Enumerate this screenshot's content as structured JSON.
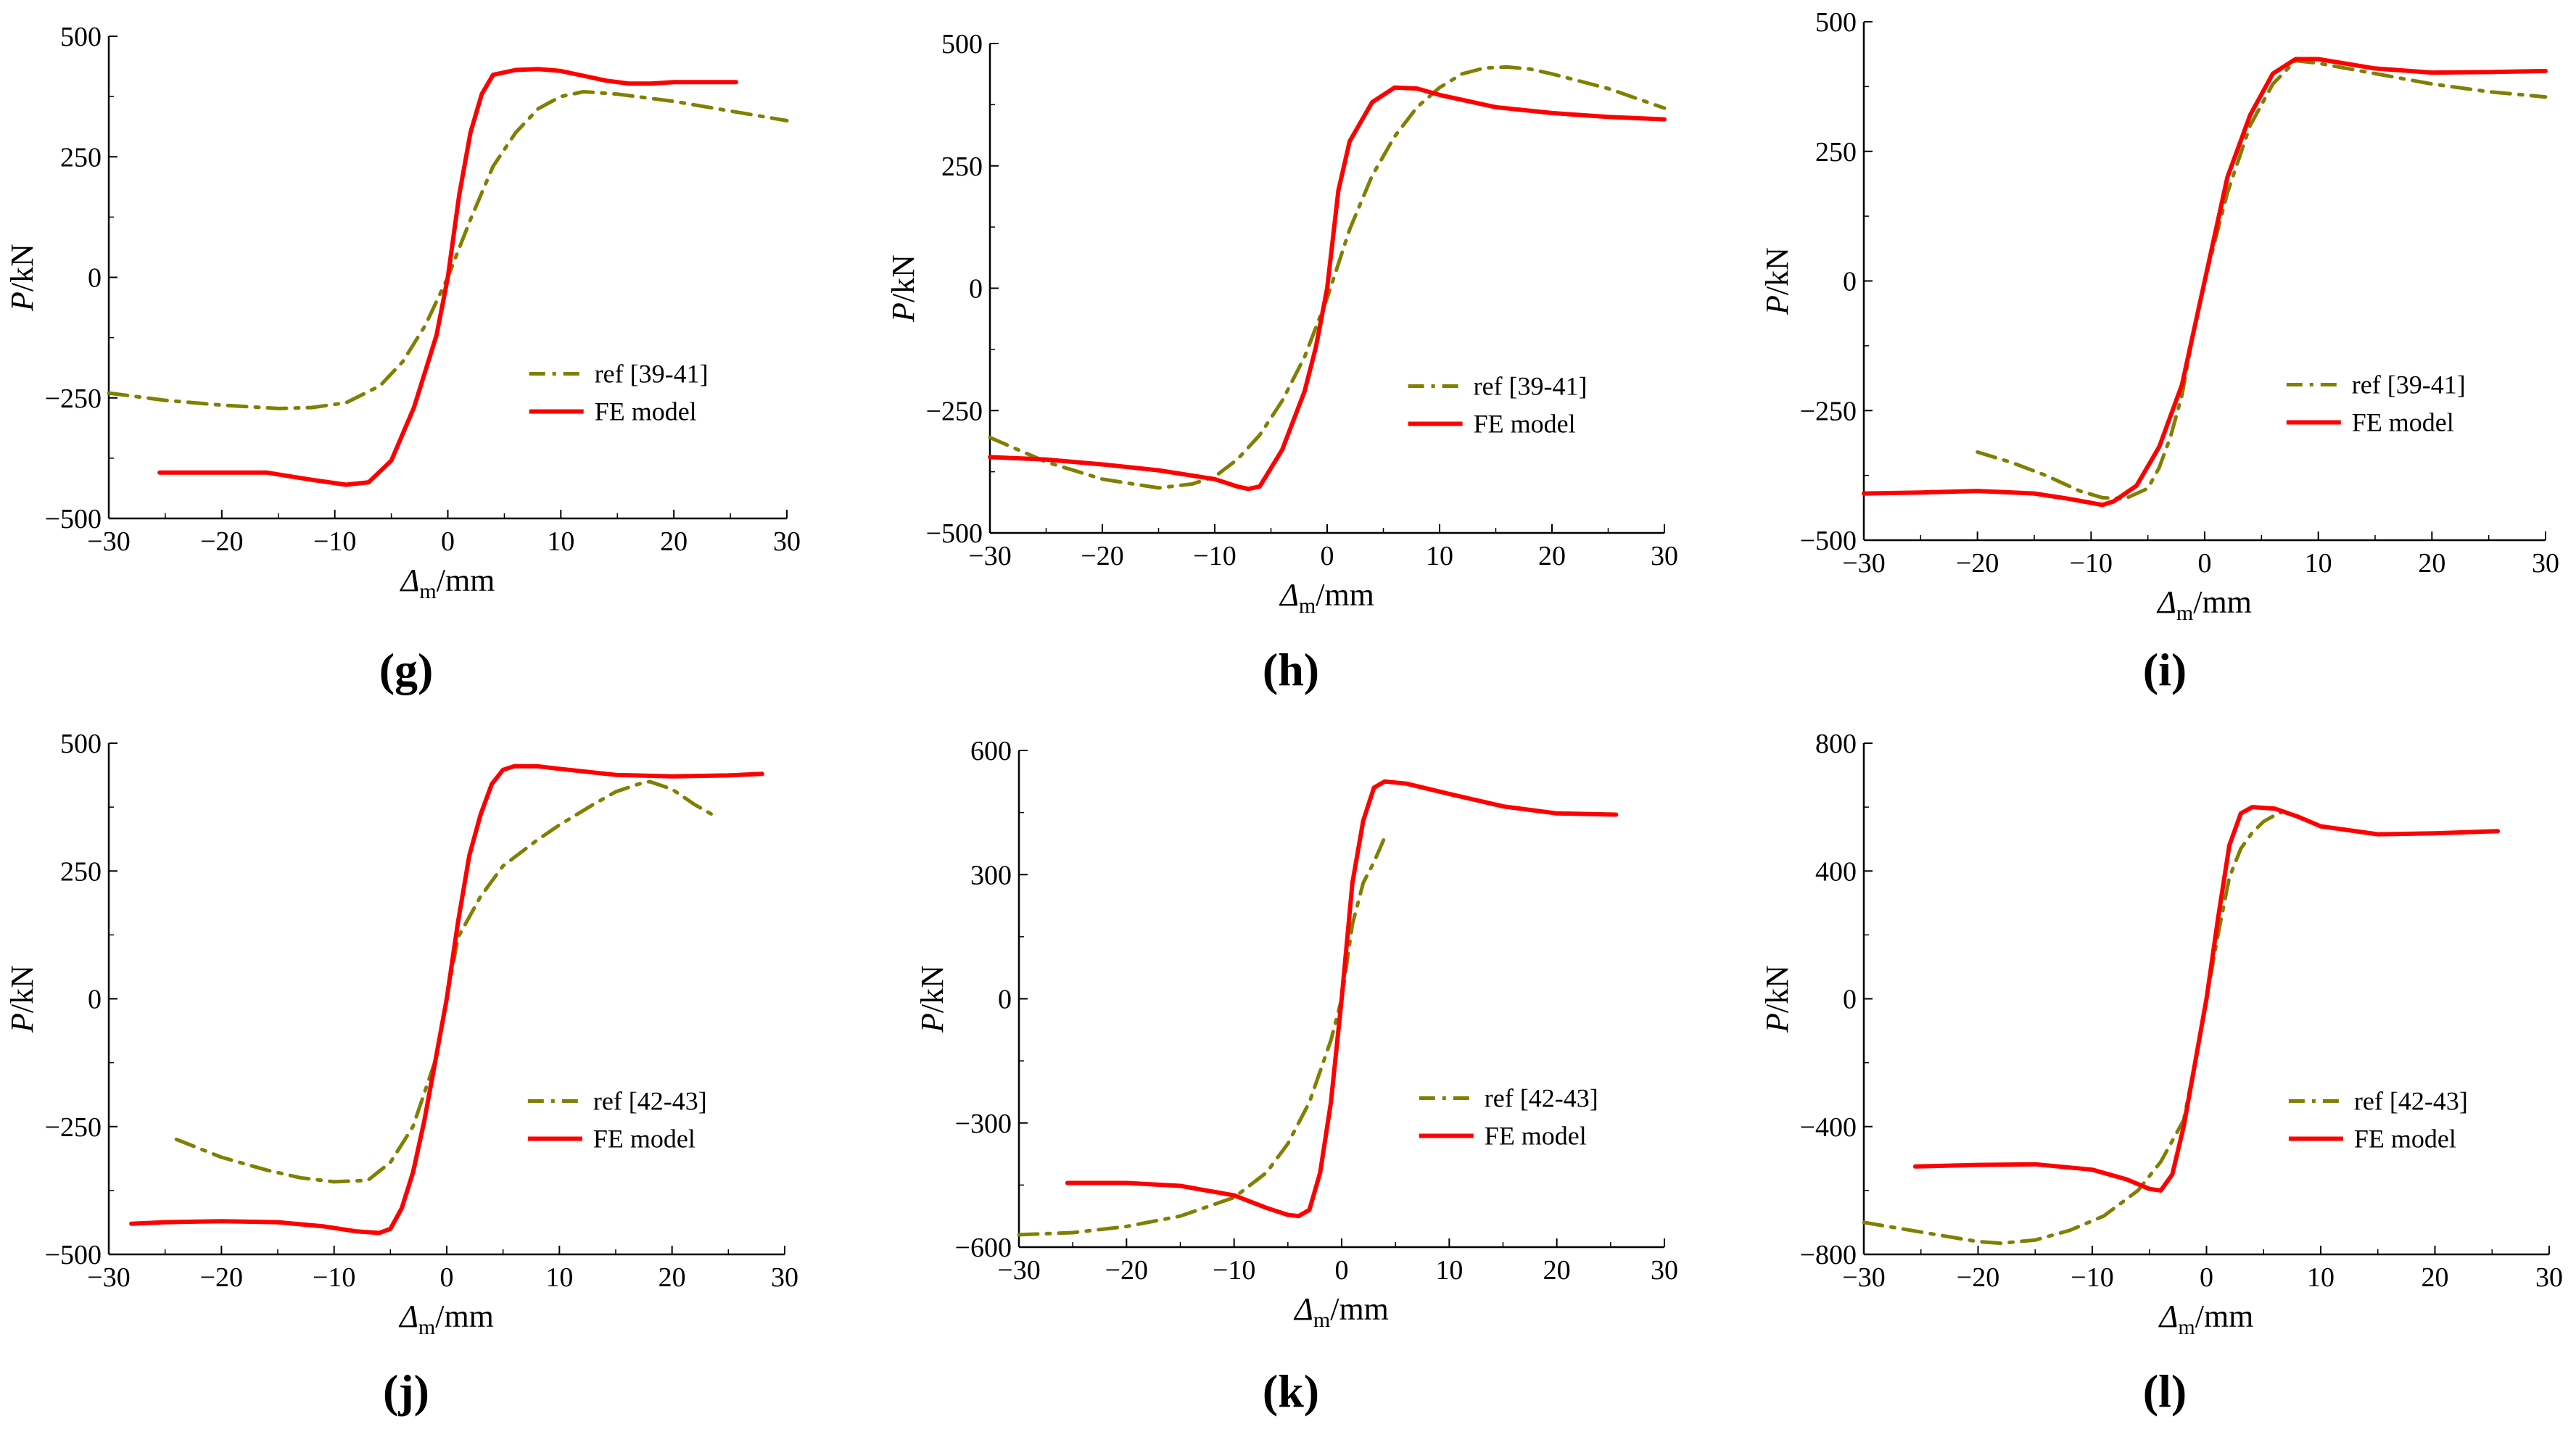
{
  "chart_data": [
    {
      "id": "g",
      "type": "line",
      "caption": "(g)",
      "xlabel_symbol": "Δ",
      "xlabel_sub": "m",
      "xlabel_unit": "/mm",
      "ylabel_symbol": "P",
      "ylabel_unit": "/kN",
      "xlim": [
        -30,
        30
      ],
      "ylim": [
        -500,
        500
      ],
      "xticks": [
        -30,
        -20,
        -10,
        0,
        10,
        20,
        30
      ],
      "yticks": [
        -500,
        -250,
        0,
        250,
        500
      ],
      "xtick_labels": [
        "−30",
        "−20",
        "−10",
        "0",
        "10",
        "20",
        "30"
      ],
      "ytick_labels": [
        "−500",
        "−250",
        "0",
        "250",
        "500"
      ],
      "legend_placement": "lower-right",
      "series": [
        {
          "name": "ref [39-41]",
          "color": "#808000",
          "style": "dashdot",
          "x": [
            -30,
            -25,
            -20,
            -15,
            -12,
            -9,
            -6,
            -4,
            -2,
            0,
            2,
            4,
            6,
            8,
            10,
            12,
            15,
            20,
            25,
            30
          ],
          "y": [
            -240,
            -255,
            -265,
            -272,
            -270,
            -260,
            -225,
            -175,
            -100,
            0,
            120,
            230,
            300,
            350,
            375,
            385,
            380,
            365,
            345,
            325
          ]
        },
        {
          "name": "FE model",
          "color": "#ff0000",
          "style": "solid",
          "x": [
            -25.5,
            -20,
            -16,
            -12,
            -9,
            -7,
            -5,
            -3,
            -1,
            0,
            1,
            2,
            3,
            4,
            6,
            8,
            10,
            12,
            14,
            16,
            18,
            20,
            25.5
          ],
          "y": [
            -405,
            -405,
            -405,
            -420,
            -430,
            -425,
            -380,
            -270,
            -120,
            0,
            170,
            300,
            380,
            420,
            430,
            432,
            428,
            418,
            408,
            402,
            402,
            405,
            405
          ]
        }
      ]
    },
    {
      "id": "h",
      "type": "line",
      "caption": "(h)",
      "xlabel_symbol": "Δ",
      "xlabel_sub": "m",
      "xlabel_unit": "/mm",
      "ylabel_symbol": "P",
      "ylabel_unit": "/kN",
      "xlim": [
        -30,
        30
      ],
      "ylim": [
        -500,
        500
      ],
      "xticks": [
        -30,
        -20,
        -10,
        0,
        10,
        20,
        30
      ],
      "yticks": [
        -500,
        -250,
        0,
        250,
        500
      ],
      "xtick_labels": [
        "−30",
        "−20",
        "−10",
        "0",
        "10",
        "20",
        "30"
      ],
      "ytick_labels": [
        "−500",
        "−250",
        "0",
        "250",
        "500"
      ],
      "legend_placement": "lower-right",
      "series": [
        {
          "name": "ref [39-41]",
          "color": "#808000",
          "style": "dashdot",
          "x": [
            -30,
            -25,
            -20,
            -15,
            -12,
            -10,
            -8,
            -6,
            -4,
            -2,
            0,
            2,
            4,
            6,
            8,
            10,
            12,
            14,
            16,
            18,
            20,
            25,
            30
          ],
          "y": [
            -305,
            -355,
            -390,
            -408,
            -400,
            -385,
            -350,
            -300,
            -230,
            -140,
            -20,
            120,
            230,
            310,
            370,
            410,
            438,
            450,
            452,
            448,
            438,
            408,
            368
          ]
        },
        {
          "name": "FE model",
          "color": "#ff0000",
          "style": "solid",
          "x": [
            -30,
            -25,
            -20,
            -15,
            -10,
            -8,
            -7,
            -6,
            -4,
            -2,
            -1,
            0,
            1,
            2,
            4,
            6,
            8,
            10,
            15,
            20,
            25,
            30
          ],
          "y": [
            -345,
            -350,
            -360,
            -372,
            -390,
            -405,
            -410,
            -405,
            -330,
            -210,
            -120,
            0,
            200,
            300,
            380,
            410,
            408,
            395,
            370,
            358,
            350,
            345
          ]
        }
      ]
    },
    {
      "id": "i",
      "type": "line",
      "caption": "(i)",
      "xlabel_symbol": "Δ",
      "xlabel_sub": "m",
      "xlabel_unit": "/mm",
      "ylabel_symbol": "P",
      "ylabel_unit": "/kN",
      "xlim": [
        -30,
        30
      ],
      "ylim": [
        -500,
        500
      ],
      "xticks": [
        -30,
        -20,
        -10,
        0,
        10,
        20,
        30
      ],
      "yticks": [
        -500,
        -250,
        0,
        250,
        500
      ],
      "xtick_labels": [
        "−30",
        "−20",
        "−10",
        "0",
        "10",
        "20",
        "30"
      ],
      "ytick_labels": [
        "−500",
        "−250",
        "0",
        "250",
        "500"
      ],
      "legend_placement": "lower-right",
      "series": [
        {
          "name": "ref [39-41]",
          "color": "#808000",
          "style": "dashdot",
          "x": [
            -20,
            -17,
            -14,
            -11,
            -9,
            -7,
            -5,
            -4,
            -3,
            -2,
            -1,
            0,
            2,
            4,
            6,
            8,
            10,
            15,
            20,
            25,
            30
          ],
          "y": [
            -330,
            -350,
            -375,
            -405,
            -418,
            -420,
            -400,
            -360,
            -300,
            -220,
            -100,
            0,
            170,
            300,
            380,
            425,
            420,
            400,
            380,
            365,
            355
          ]
        },
        {
          "name": "FE model",
          "color": "#ff0000",
          "style": "solid",
          "x": [
            -30,
            -25,
            -20,
            -15,
            -12,
            -10,
            -9,
            -8,
            -6,
            -4,
            -2,
            0,
            2,
            4,
            6,
            8,
            10,
            15,
            20,
            25,
            30
          ],
          "y": [
            -410,
            -408,
            -405,
            -410,
            -420,
            -428,
            -432,
            -425,
            -395,
            -320,
            -200,
            0,
            200,
            320,
            400,
            428,
            428,
            410,
            402,
            403,
            405
          ]
        }
      ]
    },
    {
      "id": "j",
      "type": "line",
      "caption": "(j)",
      "xlabel_symbol": "Δ",
      "xlabel_sub": "m",
      "xlabel_unit": "/mm",
      "ylabel_symbol": "P",
      "ylabel_unit": "/kN",
      "xlim": [
        -30,
        30
      ],
      "ylim": [
        -500,
        500
      ],
      "xticks": [
        -30,
        -20,
        -10,
        0,
        10,
        20,
        30
      ],
      "yticks": [
        -500,
        -250,
        0,
        250,
        500
      ],
      "xtick_labels": [
        "−30",
        "−20",
        "−10",
        "0",
        "10",
        "20",
        "30"
      ],
      "ytick_labels": [
        "−500",
        "−250",
        "0",
        "250",
        "500"
      ],
      "legend_placement": "lower-right",
      "series": [
        {
          "name": "ref [42-43]",
          "color": "#808000",
          "style": "dashdot",
          "x": [
            -24,
            -20,
            -16,
            -13,
            -10,
            -7,
            -5,
            -3,
            -1,
            0,
            1,
            3,
            5,
            8,
            10,
            13,
            15,
            17,
            18,
            20,
            22,
            24
          ],
          "y": [
            -275,
            -310,
            -335,
            -350,
            -358,
            -355,
            -320,
            -250,
            -120,
            0,
            120,
            200,
            260,
            310,
            340,
            380,
            405,
            420,
            425,
            410,
            380,
            355
          ]
        },
        {
          "name": "FE model",
          "color": "#ff0000",
          "style": "solid",
          "x": [
            -28,
            -25,
            -20,
            -15,
            -11,
            -8,
            -6,
            -5,
            -4,
            -3,
            -2,
            -1,
            0,
            1,
            2,
            3,
            4,
            5,
            6,
            8,
            10,
            15,
            20,
            25,
            28
          ],
          "y": [
            -440,
            -437,
            -435,
            -437,
            -445,
            -455,
            -458,
            -450,
            -410,
            -340,
            -240,
            -120,
            0,
            150,
            280,
            360,
            420,
            448,
            455,
            455,
            450,
            438,
            435,
            437,
            440
          ]
        }
      ]
    },
    {
      "id": "k",
      "type": "line",
      "caption": "(k)",
      "xlabel_symbol": "Δ",
      "xlabel_sub": "m",
      "xlabel_unit": "/mm",
      "ylabel_symbol": "P",
      "ylabel_unit": "/kN",
      "xlim": [
        -30,
        30
      ],
      "ylim": [
        -600,
        600
      ],
      "xticks": [
        -30,
        -20,
        -10,
        0,
        10,
        20,
        30
      ],
      "yticks": [
        -600,
        -300,
        0,
        300,
        600
      ],
      "xtick_labels": [
        "−30",
        "−20",
        "−10",
        "0",
        "10",
        "20",
        "30"
      ],
      "ytick_labels": [
        "−600",
        "−300",
        "0",
        "300",
        "600"
      ],
      "legend_placement": "lower-right",
      "series": [
        {
          "name": "ref [42-43]",
          "color": "#808000",
          "style": "dashdot",
          "x": [
            -30,
            -25,
            -20,
            -15,
            -10,
            -7,
            -5,
            -3,
            -1,
            0,
            1,
            2,
            3,
            4
          ],
          "y": [
            -570,
            -565,
            -550,
            -525,
            -480,
            -420,
            -350,
            -250,
            -100,
            0,
            180,
            280,
            330,
            390
          ]
        },
        {
          "name": "FE model",
          "color": "#ff0000",
          "style": "solid",
          "x": [
            -25.5,
            -20,
            -15,
            -10,
            -7,
            -5,
            -4,
            -3,
            -2,
            -1,
            0,
            1,
            2,
            3,
            4,
            6,
            10,
            15,
            20,
            25.5
          ],
          "y": [
            -445,
            -445,
            -452,
            -475,
            -505,
            -522,
            -525,
            -510,
            -420,
            -250,
            0,
            280,
            430,
            510,
            525,
            520,
            495,
            465,
            448,
            445
          ]
        }
      ]
    },
    {
      "id": "l",
      "type": "line",
      "caption": "(l)",
      "xlabel_symbol": "Δ",
      "xlabel_sub": "m",
      "xlabel_unit": "/mm",
      "ylabel_symbol": "P",
      "ylabel_unit": "/kN",
      "xlim": [
        -30,
        30
      ],
      "ylim": [
        -800,
        800
      ],
      "xticks": [
        -30,
        -20,
        -10,
        0,
        10,
        20,
        30
      ],
      "yticks": [
        -800,
        -400,
        0,
        400,
        800
      ],
      "xtick_labels": [
        "−30",
        "−20",
        "−10",
        "0",
        "10",
        "20",
        "30"
      ],
      "ytick_labels": [
        "−800",
        "−400",
        "0",
        "400",
        "800"
      ],
      "legend_placement": "lower-right",
      "series": [
        {
          "name": "ref [42-43]",
          "color": "#808000",
          "style": "dashdot",
          "x": [
            -30,
            -25,
            -20,
            -18,
            -15,
            -12,
            -9,
            -6,
            -4,
            -2,
            -1,
            0,
            1,
            2,
            3,
            4,
            5,
            6,
            7
          ],
          "y": [
            -700,
            -730,
            -760,
            -765,
            -755,
            -725,
            -680,
            -600,
            -510,
            -380,
            -200,
            0,
            200,
            380,
            470,
            520,
            555,
            575,
            590
          ]
        },
        {
          "name": "FE model",
          "color": "#ff0000",
          "style": "solid",
          "x": [
            -25.5,
            -20,
            -15,
            -10,
            -7,
            -5,
            -4,
            -3,
            -2,
            -1,
            0,
            1,
            2,
            3,
            4,
            6,
            8,
            10,
            15,
            20,
            25.5
          ],
          "y": [
            -525,
            -520,
            -518,
            -535,
            -565,
            -595,
            -600,
            -550,
            -400,
            -200,
            0,
            250,
            480,
            580,
            600,
            595,
            570,
            540,
            515,
            518,
            525
          ]
        }
      ]
    }
  ]
}
